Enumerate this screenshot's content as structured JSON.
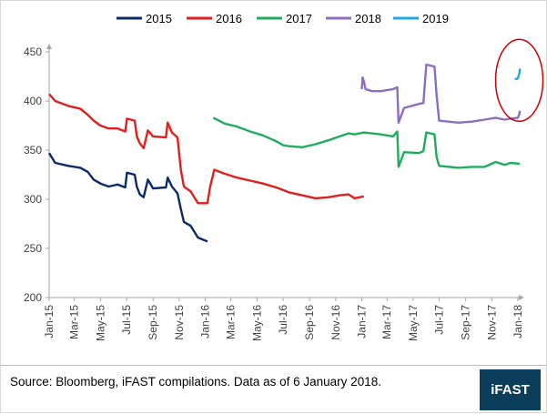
{
  "chart_data": {
    "type": "line",
    "title": "",
    "xlabel": "",
    "ylabel": "",
    "ylim": [
      200,
      450
    ],
    "yticks": [
      200,
      250,
      300,
      350,
      400,
      450
    ],
    "x_tick_labels": [
      "Jan-15",
      "Mar-15",
      "May-15",
      "Jul-15",
      "Sep-15",
      "Nov-15",
      "Jan-16",
      "Mar-16",
      "May-16",
      "Jul-16",
      "Sep-16",
      "Nov-16",
      "Jan-17",
      "Mar-17",
      "May-17",
      "Jul-17",
      "Sep-17",
      "Nov-17",
      "Jan-18"
    ],
    "grid": false,
    "legend_position": "top",
    "series": [
      {
        "name": "2015",
        "color": "#0b2a6b",
        "points": [
          [
            "2015-01-01",
            347
          ],
          [
            "2015-01-15",
            337
          ],
          [
            "2015-02-15",
            334
          ],
          [
            "2015-03-15",
            332
          ],
          [
            "2015-04-01",
            328
          ],
          [
            "2015-04-15",
            320
          ],
          [
            "2015-05-01",
            316
          ],
          [
            "2015-05-20",
            313
          ],
          [
            "2015-06-10",
            315
          ],
          [
            "2015-06-28",
            312
          ],
          [
            "2015-07-02",
            327
          ],
          [
            "2015-07-20",
            325
          ],
          [
            "2015-07-25",
            313
          ],
          [
            "2015-08-01",
            305
          ],
          [
            "2015-08-10",
            302
          ],
          [
            "2015-08-20",
            320
          ],
          [
            "2015-09-01",
            311
          ],
          [
            "2015-10-01",
            312
          ],
          [
            "2015-10-05",
            322
          ],
          [
            "2015-10-15",
            313
          ],
          [
            "2015-10-28",
            306
          ],
          [
            "2015-11-05",
            290
          ],
          [
            "2015-11-12",
            277
          ],
          [
            "2015-11-28",
            273
          ],
          [
            "2015-12-05",
            268
          ],
          [
            "2015-12-15",
            261
          ],
          [
            "2016-01-06",
            257
          ]
        ]
      },
      {
        "name": "2016",
        "color": "#e21e1e",
        "points": [
          [
            "2015-01-01",
            407
          ],
          [
            "2015-01-15",
            400
          ],
          [
            "2015-02-15",
            395
          ],
          [
            "2015-03-15",
            392
          ],
          [
            "2015-04-01",
            386
          ],
          [
            "2015-04-15",
            380
          ],
          [
            "2015-05-01",
            375
          ],
          [
            "2015-05-20",
            372
          ],
          [
            "2015-06-10",
            372
          ],
          [
            "2015-06-28",
            369
          ],
          [
            "2015-07-02",
            382
          ],
          [
            "2015-07-20",
            380
          ],
          [
            "2015-07-25",
            364
          ],
          [
            "2015-08-01",
            357
          ],
          [
            "2015-08-10",
            352
          ],
          [
            "2015-08-20",
            370
          ],
          [
            "2015-09-01",
            364
          ],
          [
            "2015-10-01",
            363
          ],
          [
            "2015-10-05",
            378
          ],
          [
            "2015-10-15",
            368
          ],
          [
            "2015-10-28",
            363
          ],
          [
            "2015-11-05",
            330
          ],
          [
            "2015-11-12",
            313
          ],
          [
            "2015-11-28",
            308
          ],
          [
            "2015-12-05",
            303
          ],
          [
            "2015-12-15",
            296
          ],
          [
            "2016-01-06",
            296
          ],
          [
            "2016-01-12",
            312
          ],
          [
            "2016-01-22",
            330
          ],
          [
            "2016-02-15",
            326
          ],
          [
            "2016-03-15",
            322
          ],
          [
            "2016-04-15",
            319
          ],
          [
            "2016-05-15",
            316
          ],
          [
            "2016-06-15",
            312
          ],
          [
            "2016-07-15",
            307
          ],
          [
            "2016-08-15",
            304
          ],
          [
            "2016-09-15",
            301
          ],
          [
            "2016-10-15",
            302
          ],
          [
            "2016-11-10",
            304
          ],
          [
            "2016-12-01",
            305
          ],
          [
            "2016-12-15",
            301
          ],
          [
            "2017-01-06",
            303
          ]
        ]
      },
      {
        "name": "2017",
        "color": "#1fad5c",
        "points": [
          [
            "2016-01-20",
            383
          ],
          [
            "2016-02-15",
            377
          ],
          [
            "2016-03-15",
            374
          ],
          [
            "2016-04-15",
            369
          ],
          [
            "2016-05-15",
            365
          ],
          [
            "2016-06-15",
            359
          ],
          [
            "2016-07-01",
            355
          ],
          [
            "2016-07-15",
            354
          ],
          [
            "2016-08-15",
            353
          ],
          [
            "2016-09-15",
            356
          ],
          [
            "2016-10-15",
            360
          ],
          [
            "2016-11-10",
            364
          ],
          [
            "2016-12-01",
            367
          ],
          [
            "2016-12-15",
            366
          ],
          [
            "2017-01-06",
            368
          ],
          [
            "2017-02-15",
            366
          ],
          [
            "2017-03-15",
            364
          ],
          [
            "2017-03-25",
            369
          ],
          [
            "2017-03-28",
            333
          ],
          [
            "2017-04-10",
            348
          ],
          [
            "2017-05-15",
            347
          ],
          [
            "2017-05-25",
            349
          ],
          [
            "2017-06-01",
            368
          ],
          [
            "2017-06-20",
            366
          ],
          [
            "2017-06-25",
            343
          ],
          [
            "2017-07-01",
            334
          ],
          [
            "2017-08-15",
            332
          ],
          [
            "2017-09-15",
            333
          ],
          [
            "2017-10-15",
            333
          ],
          [
            "2017-11-10",
            338
          ],
          [
            "2017-12-01",
            335
          ],
          [
            "2017-12-15",
            337
          ],
          [
            "2018-01-06",
            336
          ]
        ]
      },
      {
        "name": "2018",
        "color": "#8c6dbf",
        "points": [
          [
            "2017-01-01",
            412
          ],
          [
            "2017-01-03",
            424
          ],
          [
            "2017-01-06",
            420
          ],
          [
            "2017-01-10",
            412
          ],
          [
            "2017-01-25",
            410
          ],
          [
            "2017-02-15",
            410
          ],
          [
            "2017-03-15",
            412
          ],
          [
            "2017-03-25",
            414
          ],
          [
            "2017-03-28",
            378
          ],
          [
            "2017-04-10",
            393
          ],
          [
            "2017-05-15",
            397
          ],
          [
            "2017-05-25",
            398
          ],
          [
            "2017-06-01",
            437
          ],
          [
            "2017-06-20",
            435
          ],
          [
            "2017-06-25",
            406
          ],
          [
            "2017-07-01",
            380
          ],
          [
            "2017-08-15",
            378
          ],
          [
            "2017-09-15",
            379
          ],
          [
            "2017-10-15",
            381
          ],
          [
            "2017-11-10",
            383
          ],
          [
            "2017-12-01",
            381
          ],
          [
            "2017-12-15",
            382
          ],
          [
            "2018-01-01",
            383
          ],
          [
            "2018-01-04",
            386
          ],
          [
            "2018-01-06",
            390
          ]
        ]
      },
      {
        "name": "2019",
        "color": "#1fa9e1",
        "points": [
          [
            "2017-12-25",
            422
          ],
          [
            "2018-01-01",
            423
          ],
          [
            "2018-01-03",
            426
          ],
          [
            "2018-01-05",
            429
          ],
          [
            "2018-01-06",
            433
          ]
        ]
      }
    ],
    "annotation": {
      "type": "ellipse",
      "color": "#cc0000",
      "target": "2019"
    }
  },
  "footer": {
    "source": "Source: Bloomberg, iFAST compilations. Data as of 6 January 2018.",
    "logo_text": "iFAST",
    "logo_color": "#0b3e5b"
  }
}
